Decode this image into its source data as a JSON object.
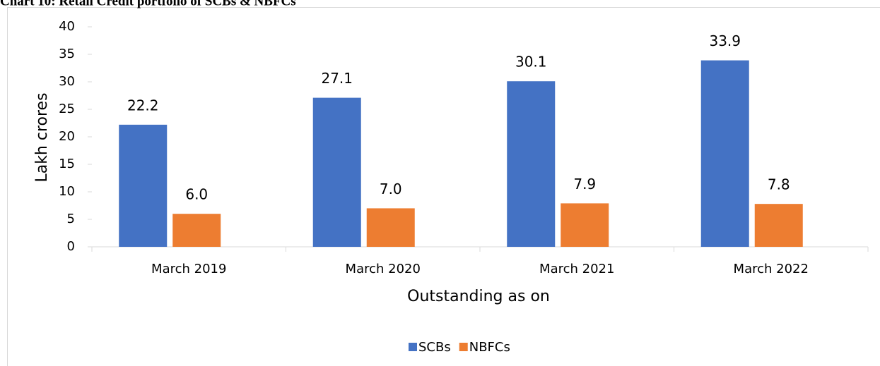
{
  "chart_data": {
    "type": "bar",
    "title": "Chart 10: Retail Credit portfolio of SCBs & NBFCs",
    "xlabel": "Outstanding as on",
    "ylabel": "Lakh crores",
    "categories": [
      "March 2019",
      "March 2020",
      "March 2021",
      "March 2022"
    ],
    "series": [
      {
        "name": "SCBs",
        "color": "#4472c4",
        "values": [
          22.2,
          27.1,
          30.1,
          33.9
        ],
        "value_labels": [
          "22.2",
          "27.1",
          "30.1",
          "33.9"
        ]
      },
      {
        "name": "NBFCs",
        "color": "#ed7d31",
        "values": [
          6,
          7,
          7.9,
          7.8
        ],
        "value_labels": [
          "6.0",
          "7.0",
          "7.9",
          "7.8"
        ]
      }
    ],
    "ylim": [
      0,
      40
    ],
    "yticks": [
      0,
      5,
      10,
      15,
      20,
      25,
      30,
      35,
      40
    ],
    "legend": "bottom"
  }
}
